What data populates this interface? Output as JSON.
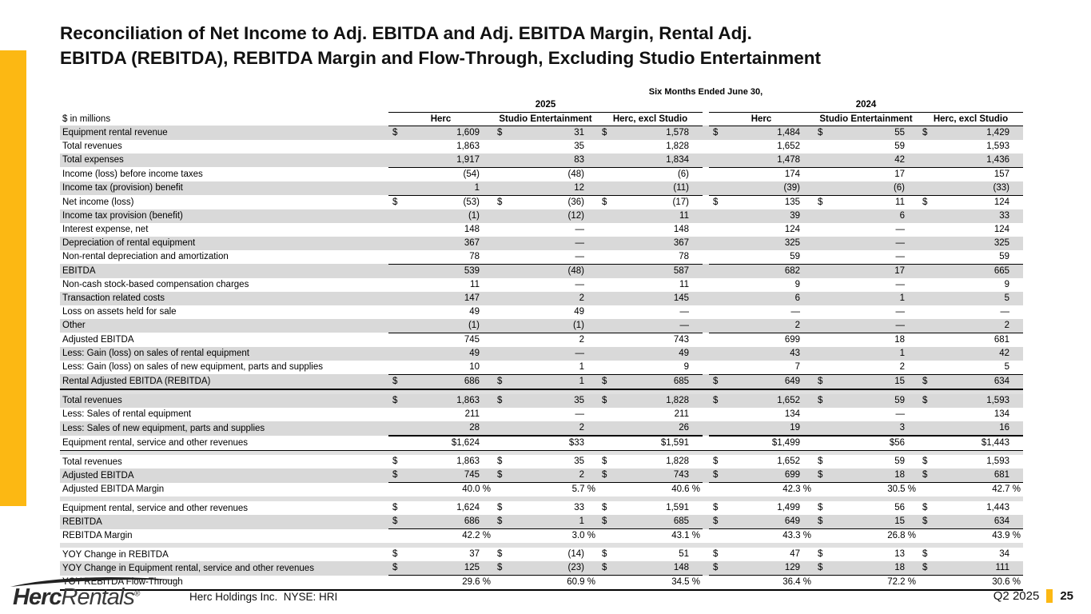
{
  "title": {
    "line1": "Reconciliation of Net Income to Adj. EBITDA and Adj. EBITDA Margin, Rental Adj.",
    "line2": "EBITDA (REBITDA), REBITDA Margin and Flow-Through, Excluding Studio Entertainment"
  },
  "colors": {
    "accent_yellow": "#FCB813",
    "row_shade": "#D9D9D9"
  },
  "table": {
    "period_header": "Six Months Ended June 30,",
    "unit_label": "$ in millions",
    "year_groups": [
      "2025",
      "2024"
    ],
    "column_headers": [
      "Herc",
      "Studio Entertainment",
      "Herc, excl Studio"
    ],
    "rows": [
      {
        "label": "Equipment rental revenue",
        "shaded": true,
        "dollar": true,
        "values": [
          "1,609",
          "31",
          "1,578",
          "1,484",
          "55",
          "1,429"
        ]
      },
      {
        "label": "Total revenues",
        "values": [
          "1,863",
          "35",
          "1,828",
          "1,652",
          "59",
          "1,593"
        ]
      },
      {
        "label": "Total expenses",
        "shaded": true,
        "line": "thin-values",
        "values": [
          "1,917",
          "83",
          "1,834",
          "1,478",
          "42",
          "1,436"
        ]
      },
      {
        "label": "Income (loss) before income taxes",
        "values": [
          "(54)",
          "(48)",
          "(6)",
          "174",
          "17",
          "157"
        ]
      },
      {
        "label": "Income tax (provision) benefit",
        "shaded": true,
        "line": "thin-values",
        "values": [
          "1",
          "12",
          "(11)",
          "(39)",
          "(6)",
          "(33)"
        ]
      },
      {
        "label": "Net income (loss)",
        "bold": true,
        "dollar": true,
        "values": [
          "(53)",
          "(36)",
          "(17)",
          "135",
          "11",
          "124"
        ]
      },
      {
        "label": "Income tax provision (benefit)",
        "shaded": true,
        "values": [
          "(1)",
          "(12)",
          "11",
          "39",
          "6",
          "33"
        ]
      },
      {
        "label": "Interest expense, net",
        "values": [
          "148",
          "—",
          "148",
          "124",
          "—",
          "124"
        ]
      },
      {
        "label": "Depreciation of rental equipment",
        "shaded": true,
        "values": [
          "367",
          "—",
          "367",
          "325",
          "—",
          "325"
        ]
      },
      {
        "label": "Non-rental depreciation and amortization",
        "line": "thin-values",
        "values": [
          "78",
          "—",
          "78",
          "59",
          "—",
          "59"
        ]
      },
      {
        "label": "EBITDA",
        "bold": true,
        "shaded": true,
        "values": [
          "539",
          "(48)",
          "587",
          "682",
          "17",
          "665"
        ]
      },
      {
        "label": "Non-cash stock-based compensation charges",
        "values": [
          "11",
          "—",
          "11",
          "9",
          "—",
          "9"
        ]
      },
      {
        "label": "Transaction related costs",
        "shaded": true,
        "values": [
          "147",
          "2",
          "145",
          "6",
          "1",
          "5"
        ]
      },
      {
        "label": "Loss on assets held for sale",
        "values": [
          "49",
          "49",
          "—",
          "—",
          "—",
          "—"
        ]
      },
      {
        "label": "Other",
        "shaded": true,
        "line": "thin-values",
        "values": [
          "(1)",
          "(1)",
          "—",
          "2",
          "—",
          "2"
        ]
      },
      {
        "label": "Adjusted EBITDA",
        "bold": true,
        "values": [
          "745",
          "2",
          "743",
          "699",
          "18",
          "681"
        ]
      },
      {
        "label": "Less: Gain (loss) on sales of rental equipment",
        "shaded": true,
        "values": [
          "49",
          "—",
          "49",
          "43",
          "1",
          "42"
        ]
      },
      {
        "label": "Less: Gain (loss) on sales of new equipment, parts and supplies",
        "line": "thin-values",
        "values": [
          "10",
          "1",
          "9",
          "7",
          "2",
          "5"
        ]
      },
      {
        "label": "Rental Adjusted EBITDA (REBITDA)",
        "bold": true,
        "shaded": true,
        "dollar": true,
        "line": "thick-full",
        "values": [
          "686",
          "1",
          "685",
          "649",
          "15",
          "634"
        ]
      },
      {
        "spacer": true
      },
      {
        "label": "Total revenues",
        "shaded": true,
        "dollar": true,
        "values": [
          "1,863",
          "35",
          "1,828",
          "1,652",
          "59",
          "1,593"
        ]
      },
      {
        "label": "Less: Sales of rental equipment",
        "values": [
          "211",
          "—",
          "211",
          "134",
          "—",
          "134"
        ]
      },
      {
        "label": "Less: Sales of new equipment, parts and supplies",
        "shaded": true,
        "line": "thick-values",
        "values": [
          "28",
          "2",
          "26",
          "19",
          "3",
          "16"
        ]
      },
      {
        "label": "Equipment rental, service and other revenues",
        "bold": true,
        "line": "thin-full",
        "values": [
          "$1,624",
          "$33",
          "$1,591",
          "$1,499",
          "$56",
          "$1,443"
        ]
      },
      {
        "spacer": true
      },
      {
        "label": "Total revenues",
        "dollar": true,
        "values": [
          "1,863",
          "35",
          "1,828",
          "1,652",
          "59",
          "1,593"
        ]
      },
      {
        "label": "Adjusted EBITDA",
        "shaded": true,
        "dollar": true,
        "line": "thin-values",
        "values": [
          "745",
          "2",
          "743",
          "699",
          "18",
          "681"
        ]
      },
      {
        "label": "Adjusted EBITDA Margin",
        "bold": true,
        "values": [
          "40.0 %",
          "5.7 %",
          "40.6 %",
          "42.3 %",
          "30.5 %",
          "42.7 %"
        ]
      },
      {
        "spacer": true
      },
      {
        "label": "Equipment rental, service and other revenues",
        "dollar": true,
        "values": [
          "1,624",
          "33",
          "1,591",
          "1,499",
          "56",
          "1,443"
        ]
      },
      {
        "label": "REBITDA",
        "shaded": true,
        "dollar": true,
        "line": "thin-values",
        "values": [
          "686",
          "1",
          "685",
          "649",
          "15",
          "634"
        ]
      },
      {
        "label": "REBITDA Margin",
        "bold": true,
        "values": [
          "42.2 %",
          "3.0 %",
          "43.1 %",
          "43.3 %",
          "26.8 %",
          "43.9 %"
        ]
      },
      {
        "spacer": true
      },
      {
        "label": "YOY Change in REBITDA",
        "dollar": true,
        "values": [
          "37",
          "(14)",
          "51",
          "47",
          "13",
          "34"
        ]
      },
      {
        "label": "YOY Change in Equipment rental, service and other revenues",
        "shaded": true,
        "dollar": true,
        "line": "thin-values",
        "values": [
          "125",
          "(23)",
          "148",
          "129",
          "18",
          "111"
        ]
      },
      {
        "label": "YOY REBITDA Flow-Through",
        "bold": true,
        "line": "thick-full",
        "values": [
          "29.6 %",
          "60.9 %",
          "34.5 %",
          "36.4 %",
          "72.2 %",
          "30.6 %"
        ]
      }
    ]
  },
  "footer": {
    "logo_herc": "Herc",
    "logo_rentals": "Rentals",
    "logo_reg": "®",
    "company": "Herc Holdings Inc.  NYSE: HRI",
    "quarter": "Q2 2025",
    "page": "25"
  }
}
